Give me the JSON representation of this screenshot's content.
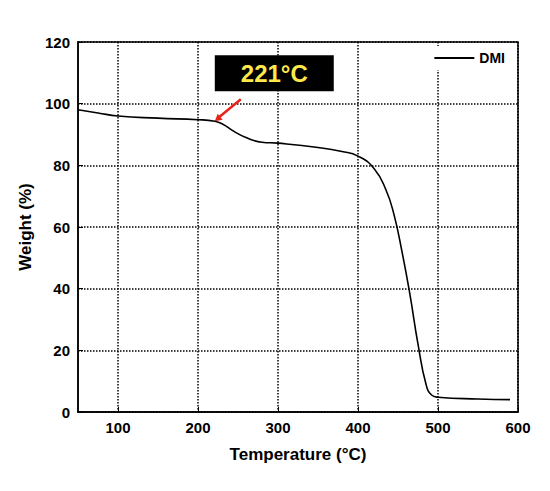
{
  "chart_data": {
    "type": "line",
    "x_label": "Temperature (°C)",
    "y_label": "Weight (%)",
    "xlim": [
      50,
      600
    ],
    "xticks": [
      100,
      200,
      300,
      400,
      500,
      600
    ],
    "ylim": [
      0,
      120
    ],
    "yticks": [
      0,
      20,
      40,
      60,
      80,
      100,
      120
    ],
    "grid": true,
    "legend": "upper right",
    "annotation": {
      "text": "221°C",
      "x": 221,
      "y": 94.3
    },
    "series": [
      {
        "name": "DMI",
        "color": "#000000",
        "line_style": "solid",
        "x": [
          50,
          75,
          100,
          150,
          200,
          221,
          230,
          245,
          260,
          280,
          300,
          350,
          380,
          400,
          420,
          435,
          445,
          455,
          465,
          475,
          485,
          492,
          500,
          550,
          590
        ],
        "values": [
          98,
          97,
          96,
          95.3,
          94.8,
          94.3,
          93.5,
          91,
          89,
          87.5,
          87.2,
          85.8,
          84.5,
          83,
          79,
          72,
          64,
          52,
          38,
          22,
          9,
          5.5,
          4.8,
          4.2,
          4
        ]
      }
    ]
  }
}
